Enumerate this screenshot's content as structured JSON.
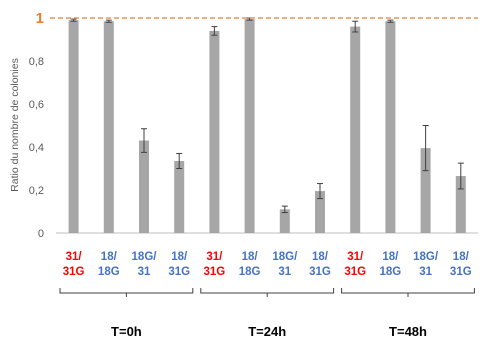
{
  "colors": {
    "bar": "#a6a6a6",
    "reference_line": "#ed7d31",
    "red_label": "#ff0000",
    "blue_label": "#4472c4",
    "axis": "#bfbfbf",
    "error_bar": "#404040",
    "bracket": "#404040"
  },
  "chart_data": {
    "type": "bar",
    "ylabel": "Ratio du nombre de colonies",
    "ylim": [
      0,
      1
    ],
    "yticks": [
      "0",
      "0,2",
      "0,4",
      "0,6",
      "0,8",
      "1"
    ],
    "reference_line": {
      "value": 1,
      "label": "1",
      "style": "dashed"
    },
    "groups": [
      {
        "label": "T=0h",
        "start": 0,
        "count": 4
      },
      {
        "label": "T=24h",
        "start": 4,
        "count": 4
      },
      {
        "label": "T=48h",
        "start": 8,
        "count": 4
      }
    ],
    "categories": [
      {
        "line1": "31/",
        "line2": "31G",
        "color": "red"
      },
      {
        "line1": "18/",
        "line2": "18G",
        "color": "blue"
      },
      {
        "line1": "18G/",
        "line2": "31",
        "color": "blue"
      },
      {
        "line1": "18/",
        "line2": "31G",
        "color": "blue"
      },
      {
        "line1": "31/",
        "line2": "31G",
        "color": "red"
      },
      {
        "line1": "18/",
        "line2": "18G",
        "color": "blue"
      },
      {
        "line1": "18G/",
        "line2": "31",
        "color": "blue"
      },
      {
        "line1": "18/",
        "line2": "31G",
        "color": "blue"
      },
      {
        "line1": "31/",
        "line2": "31G",
        "color": "red"
      },
      {
        "line1": "18/",
        "line2": "18G",
        "color": "blue"
      },
      {
        "line1": "18G/",
        "line2": "31",
        "color": "blue"
      },
      {
        "line1": "18/",
        "line2": "31G",
        "color": "blue"
      }
    ],
    "values": [
      0.99,
      0.985,
      0.43,
      0.335,
      0.94,
      0.995,
      0.11,
      0.195,
      0.96,
      0.985,
      0.395,
      0.265
    ],
    "errors": [
      0.005,
      0.005,
      0.055,
      0.035,
      0.02,
      0.005,
      0.015,
      0.035,
      0.025,
      0.005,
      0.105,
      0.06
    ],
    "grid": false,
    "legend": "none"
  }
}
